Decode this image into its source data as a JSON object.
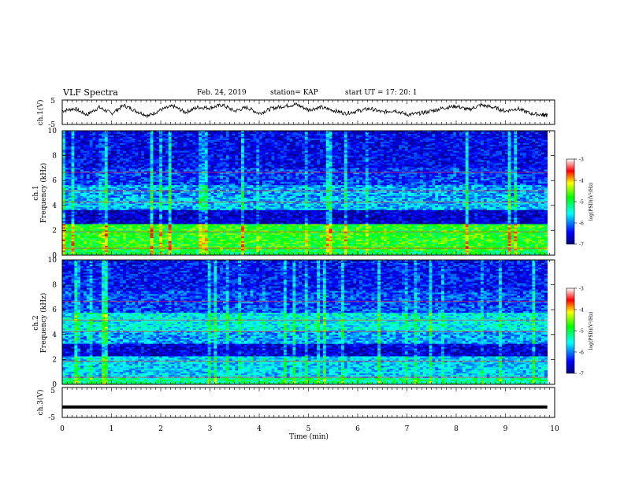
{
  "header": {
    "title": "VLF Spectra",
    "date": "Feb. 24, 2019",
    "station": "station= KAP",
    "start": "start  UT =    17: 20: 1"
  },
  "chart_data": [
    {
      "type": "line",
      "panel": "ch1_waveform",
      "ylabel": "ch.1(V)",
      "ylim": [
        -5,
        5
      ],
      "yticks": [
        "5",
        "-5"
      ],
      "x": [
        0,
        0.25,
        0.5,
        0.75,
        1,
        1.25,
        1.5,
        1.75,
        2,
        2.25,
        2.5,
        2.75,
        3,
        3.25,
        3.5,
        3.75,
        4,
        4.25,
        4.5,
        4.75,
        5,
        5.25,
        5.5,
        5.75,
        6,
        6.25,
        6.5,
        6.75,
        7,
        7.25,
        7.5,
        7.75,
        8,
        8.25,
        8.5,
        8.75,
        9,
        9.25,
        9.5,
        9.75,
        9.85
      ],
      "y": [
        0.5,
        1.5,
        -1.0,
        2.0,
        -0.5,
        2.8,
        0.5,
        -1.5,
        1.0,
        2.5,
        0.0,
        2.0,
        1.8,
        3.0,
        0.5,
        2.0,
        -0.5,
        1.5,
        2.5,
        3.2,
        1.0,
        2.0,
        0.8,
        -0.5,
        0.5,
        1.5,
        0.0,
        0.8,
        -1.0,
        -0.5,
        0.5,
        1.8,
        2.5,
        1.0,
        3.0,
        2.0,
        0.5,
        1.5,
        -0.5,
        -1.0,
        -1.2
      ]
    },
    {
      "type": "heatmap",
      "panel": "ch1_spectrogram",
      "ylabel": "Frequency (kHz)",
      "channel_label": "ch.1",
      "ylim": [
        0,
        10
      ],
      "yticks": [
        "0",
        "2",
        "4",
        "6",
        "8",
        "10"
      ],
      "colorbar": {
        "label": "log(PSD)(V²/Hz)",
        "ticks": [
          "-3",
          "-4",
          "-5",
          "-6",
          "-7"
        ],
        "range": [
          -7,
          -3
        ]
      }
    },
    {
      "type": "heatmap",
      "panel": "ch2_spectrogram",
      "ylabel": "Frequency (kHz)",
      "channel_label": "ch.2",
      "ylim": [
        0,
        10
      ],
      "yticks": [
        "0",
        "2",
        "4",
        "6",
        "8",
        "10"
      ],
      "colorbar": {
        "label": "log(PSD)(V²/Hz)",
        "ticks": [
          "-3",
          "-4",
          "-5",
          "-6",
          "-7"
        ],
        "range": [
          -7,
          -3
        ]
      }
    },
    {
      "type": "line",
      "panel": "ch3_waveform",
      "ylabel": "ch.3(V)",
      "ylim": [
        -5,
        5
      ],
      "yticks": [
        "5",
        "-5"
      ],
      "x": [
        0,
        9.85
      ],
      "y": [
        -1.5,
        -1.5
      ],
      "xlabel": "Time  (min)",
      "xlim": [
        0,
        10
      ],
      "xticks": [
        "0",
        "1",
        "2",
        "3",
        "4",
        "5",
        "6",
        "7",
        "8",
        "9",
        "10"
      ]
    }
  ]
}
